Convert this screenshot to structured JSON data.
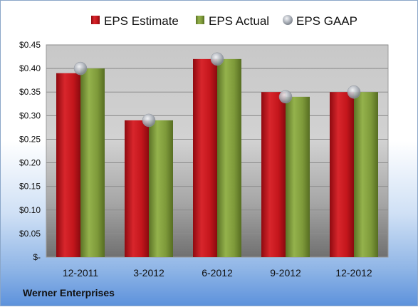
{
  "company": "Werner Enterprises",
  "colors": {
    "estimate": "#c8161d",
    "actual": "#7e9a3a",
    "gaap": "#b9bec6"
  },
  "chart_data": {
    "type": "bar",
    "categories": [
      "12-2011",
      "3-2012",
      "6-2012",
      "9-2012",
      "12-2012"
    ],
    "series": [
      {
        "name": "EPS Estimate",
        "marker": "bar",
        "values": [
          0.39,
          0.29,
          0.42,
          0.35,
          0.35
        ]
      },
      {
        "name": "EPS Actual",
        "marker": "bar",
        "values": [
          0.4,
          0.29,
          0.42,
          0.34,
          0.35
        ]
      },
      {
        "name": "EPS GAAP",
        "marker": "circle",
        "values": [
          0.4,
          0.29,
          0.42,
          0.34,
          0.35
        ]
      }
    ],
    "yticks": [
      "$-",
      "$0.05",
      "$0.10",
      "$0.15",
      "$0.20",
      "$0.25",
      "$0.30",
      "$0.35",
      "$0.40",
      "$0.45"
    ],
    "ylim": [
      0,
      0.45
    ],
    "legend_position": "top",
    "grid": true
  }
}
